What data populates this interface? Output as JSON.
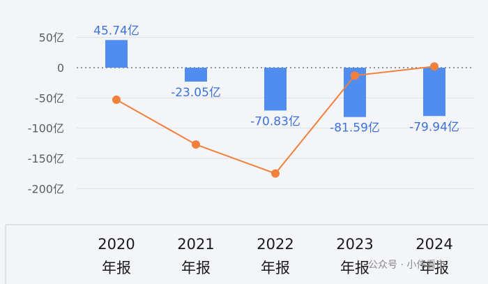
{
  "chart_data": {
    "type": "bar",
    "categories": [
      "2020",
      "2021",
      "2022",
      "2023",
      "2024"
    ],
    "category_suffix": "年报",
    "y_ticks": [
      {
        "value": 50,
        "label": "50亿"
      },
      {
        "value": 0,
        "label": "0"
      },
      {
        "value": -50,
        "label": "-50亿"
      },
      {
        "value": -100,
        "label": "-100亿"
      },
      {
        "value": -150,
        "label": "-150亿"
      },
      {
        "value": -200,
        "label": "-200亿"
      }
    ],
    "ylim": [
      -225,
      60
    ],
    "series": [
      {
        "type": "bar",
        "values": [
          45.74,
          -23.05,
          -70.83,
          -81.59,
          -79.94
        ],
        "labels": [
          "45.74亿",
          "-23.05亿",
          "-70.83亿",
          "-81.59亿",
          "-79.94亿"
        ],
        "color": "#4f8ef0"
      },
      {
        "type": "line",
        "values": [
          -53,
          -127,
          -175,
          -13,
          2
        ],
        "color": "#f0803c"
      }
    ],
    "grid": "horizontal-dashed",
    "legend": "none"
  },
  "colors": {
    "bar": "#4f8ef0",
    "line": "#f0803c",
    "background": "#f4f5f8",
    "grid": "#dcdfe6",
    "zero_line": "#6b6e75"
  },
  "watermark": "公众号 · 小伟看市"
}
